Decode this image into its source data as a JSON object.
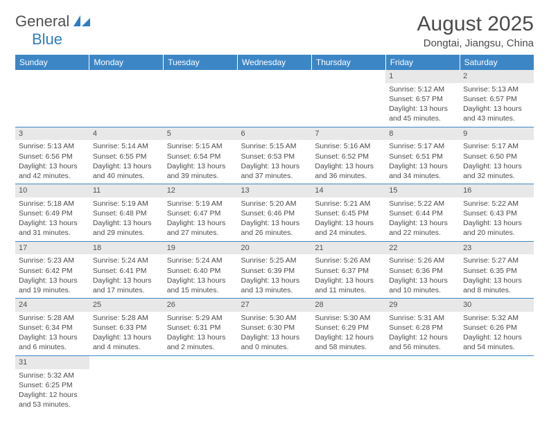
{
  "logo": {
    "text1": "General",
    "text2": "Blue"
  },
  "title": "August 2025",
  "location": "Dongtai, Jiangsu, China",
  "colors": {
    "header_bg": "#3d86c6",
    "header_text": "#ffffff",
    "daynum_bg": "#e8e8e8",
    "border": "#3d86c6",
    "logo_blue": "#2f7cc4",
    "text": "#4a4a4a"
  },
  "weekdays": [
    "Sunday",
    "Monday",
    "Tuesday",
    "Wednesday",
    "Thursday",
    "Friday",
    "Saturday"
  ],
  "weeks": [
    [
      {
        "n": "",
        "sr": "",
        "ss": "",
        "dl": "",
        "empty": true
      },
      {
        "n": "",
        "sr": "",
        "ss": "",
        "dl": "",
        "empty": true
      },
      {
        "n": "",
        "sr": "",
        "ss": "",
        "dl": "",
        "empty": true
      },
      {
        "n": "",
        "sr": "",
        "ss": "",
        "dl": "",
        "empty": true
      },
      {
        "n": "",
        "sr": "",
        "ss": "",
        "dl": "",
        "empty": true
      },
      {
        "n": "1",
        "sr": "Sunrise: 5:12 AM",
        "ss": "Sunset: 6:57 PM",
        "dl": "Daylight: 13 hours and 45 minutes."
      },
      {
        "n": "2",
        "sr": "Sunrise: 5:13 AM",
        "ss": "Sunset: 6:57 PM",
        "dl": "Daylight: 13 hours and 43 minutes."
      }
    ],
    [
      {
        "n": "3",
        "sr": "Sunrise: 5:13 AM",
        "ss": "Sunset: 6:56 PM",
        "dl": "Daylight: 13 hours and 42 minutes."
      },
      {
        "n": "4",
        "sr": "Sunrise: 5:14 AM",
        "ss": "Sunset: 6:55 PM",
        "dl": "Daylight: 13 hours and 40 minutes."
      },
      {
        "n": "5",
        "sr": "Sunrise: 5:15 AM",
        "ss": "Sunset: 6:54 PM",
        "dl": "Daylight: 13 hours and 39 minutes."
      },
      {
        "n": "6",
        "sr": "Sunrise: 5:15 AM",
        "ss": "Sunset: 6:53 PM",
        "dl": "Daylight: 13 hours and 37 minutes."
      },
      {
        "n": "7",
        "sr": "Sunrise: 5:16 AM",
        "ss": "Sunset: 6:52 PM",
        "dl": "Daylight: 13 hours and 36 minutes."
      },
      {
        "n": "8",
        "sr": "Sunrise: 5:17 AM",
        "ss": "Sunset: 6:51 PM",
        "dl": "Daylight: 13 hours and 34 minutes."
      },
      {
        "n": "9",
        "sr": "Sunrise: 5:17 AM",
        "ss": "Sunset: 6:50 PM",
        "dl": "Daylight: 13 hours and 32 minutes."
      }
    ],
    [
      {
        "n": "10",
        "sr": "Sunrise: 5:18 AM",
        "ss": "Sunset: 6:49 PM",
        "dl": "Daylight: 13 hours and 31 minutes."
      },
      {
        "n": "11",
        "sr": "Sunrise: 5:19 AM",
        "ss": "Sunset: 6:48 PM",
        "dl": "Daylight: 13 hours and 29 minutes."
      },
      {
        "n": "12",
        "sr": "Sunrise: 5:19 AM",
        "ss": "Sunset: 6:47 PM",
        "dl": "Daylight: 13 hours and 27 minutes."
      },
      {
        "n": "13",
        "sr": "Sunrise: 5:20 AM",
        "ss": "Sunset: 6:46 PM",
        "dl": "Daylight: 13 hours and 26 minutes."
      },
      {
        "n": "14",
        "sr": "Sunrise: 5:21 AM",
        "ss": "Sunset: 6:45 PM",
        "dl": "Daylight: 13 hours and 24 minutes."
      },
      {
        "n": "15",
        "sr": "Sunrise: 5:22 AM",
        "ss": "Sunset: 6:44 PM",
        "dl": "Daylight: 13 hours and 22 minutes."
      },
      {
        "n": "16",
        "sr": "Sunrise: 5:22 AM",
        "ss": "Sunset: 6:43 PM",
        "dl": "Daylight: 13 hours and 20 minutes."
      }
    ],
    [
      {
        "n": "17",
        "sr": "Sunrise: 5:23 AM",
        "ss": "Sunset: 6:42 PM",
        "dl": "Daylight: 13 hours and 19 minutes."
      },
      {
        "n": "18",
        "sr": "Sunrise: 5:24 AM",
        "ss": "Sunset: 6:41 PM",
        "dl": "Daylight: 13 hours and 17 minutes."
      },
      {
        "n": "19",
        "sr": "Sunrise: 5:24 AM",
        "ss": "Sunset: 6:40 PM",
        "dl": "Daylight: 13 hours and 15 minutes."
      },
      {
        "n": "20",
        "sr": "Sunrise: 5:25 AM",
        "ss": "Sunset: 6:39 PM",
        "dl": "Daylight: 13 hours and 13 minutes."
      },
      {
        "n": "21",
        "sr": "Sunrise: 5:26 AM",
        "ss": "Sunset: 6:37 PM",
        "dl": "Daylight: 13 hours and 11 minutes."
      },
      {
        "n": "22",
        "sr": "Sunrise: 5:26 AM",
        "ss": "Sunset: 6:36 PM",
        "dl": "Daylight: 13 hours and 10 minutes."
      },
      {
        "n": "23",
        "sr": "Sunrise: 5:27 AM",
        "ss": "Sunset: 6:35 PM",
        "dl": "Daylight: 13 hours and 8 minutes."
      }
    ],
    [
      {
        "n": "24",
        "sr": "Sunrise: 5:28 AM",
        "ss": "Sunset: 6:34 PM",
        "dl": "Daylight: 13 hours and 6 minutes."
      },
      {
        "n": "25",
        "sr": "Sunrise: 5:28 AM",
        "ss": "Sunset: 6:33 PM",
        "dl": "Daylight: 13 hours and 4 minutes."
      },
      {
        "n": "26",
        "sr": "Sunrise: 5:29 AM",
        "ss": "Sunset: 6:31 PM",
        "dl": "Daylight: 13 hours and 2 minutes."
      },
      {
        "n": "27",
        "sr": "Sunrise: 5:30 AM",
        "ss": "Sunset: 6:30 PM",
        "dl": "Daylight: 13 hours and 0 minutes."
      },
      {
        "n": "28",
        "sr": "Sunrise: 5:30 AM",
        "ss": "Sunset: 6:29 PM",
        "dl": "Daylight: 12 hours and 58 minutes."
      },
      {
        "n": "29",
        "sr": "Sunrise: 5:31 AM",
        "ss": "Sunset: 6:28 PM",
        "dl": "Daylight: 12 hours and 56 minutes."
      },
      {
        "n": "30",
        "sr": "Sunrise: 5:32 AM",
        "ss": "Sunset: 6:26 PM",
        "dl": "Daylight: 12 hours and 54 minutes."
      }
    ],
    [
      {
        "n": "31",
        "sr": "Sunrise: 5:32 AM",
        "ss": "Sunset: 6:25 PM",
        "dl": "Daylight: 12 hours and 53 minutes."
      },
      {
        "n": "",
        "sr": "",
        "ss": "",
        "dl": "",
        "empty": true
      },
      {
        "n": "",
        "sr": "",
        "ss": "",
        "dl": "",
        "empty": true
      },
      {
        "n": "",
        "sr": "",
        "ss": "",
        "dl": "",
        "empty": true
      },
      {
        "n": "",
        "sr": "",
        "ss": "",
        "dl": "",
        "empty": true
      },
      {
        "n": "",
        "sr": "",
        "ss": "",
        "dl": "",
        "empty": true
      },
      {
        "n": "",
        "sr": "",
        "ss": "",
        "dl": "",
        "empty": true
      }
    ]
  ]
}
